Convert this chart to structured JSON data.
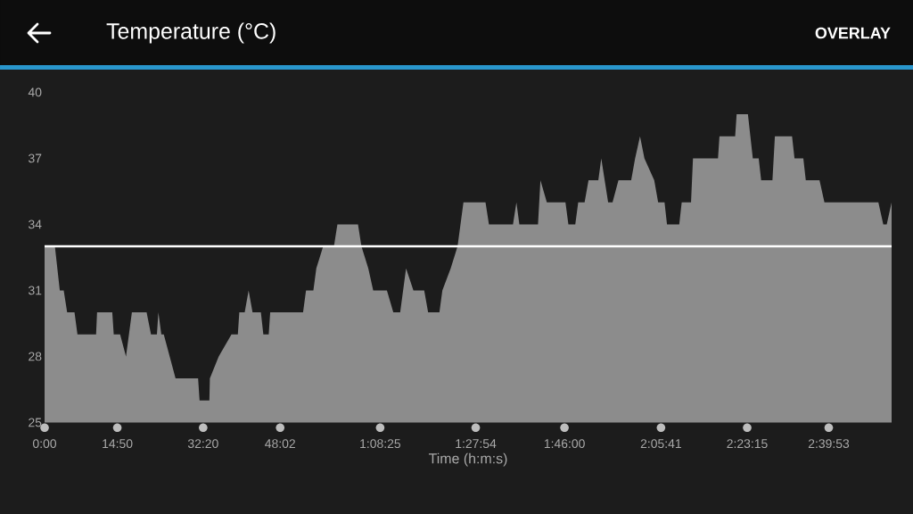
{
  "chart_data": {
    "type": "area",
    "title": "Temperature (°C)",
    "xlabel": "Time (h:m:s)",
    "annotations": [
      "OVERLAY"
    ],
    "color": "#8c8c8c",
    "x": [
      0,
      2.1,
      3.1,
      3.9,
      4.6,
      6.1,
      6.7,
      10.5,
      10.7,
      13.8,
      14.1,
      15.4,
      16.6,
      17.8,
      20.8,
      21.7,
      22.9,
      23.2,
      23.8,
      24.3,
      25.5,
      26.7,
      31.3,
      31.6,
      33.6,
      33.7,
      35.5,
      38.1,
      39.4,
      39.7,
      40.8,
      41.6,
      42.4,
      44.1,
      44.6,
      45.7,
      46.0,
      52.7,
      53.3,
      54.8,
      55.4,
      56.8,
      59.0,
      59.7,
      63.9,
      64.6,
      66.0,
      67.0,
      69.8,
      71.1,
      72.5,
      73.7,
      75.2,
      77.4,
      78.2,
      80.5,
      81.1,
      82.8,
      84.2,
      85.4,
      89.9,
      90.6,
      95.5,
      96.2,
      96.8,
      100.6,
      101.1,
      102.4,
      103.1,
      106.2,
      106.8,
      108.2,
      108.8,
      110.1,
      110.9,
      112.9,
      113.5,
      114.9,
      115.8,
      117.0,
      119.6,
      120.4,
      121.4,
      122.3,
      124.3,
      125.1,
      126.4,
      126.9,
      129.4,
      129.9,
      131.8,
      132.2,
      137.3,
      137.6,
      140.8,
      141.1,
      143.4,
      144.4,
      145.6,
      146.1,
      148.4,
      148.9,
      152.4,
      152.9,
      154.7,
      155.2,
      158.0,
      159.0,
      170.0,
      171.0,
      171.7,
      172.7
    ],
    "values": [
      33,
      33,
      31,
      31,
      30,
      30,
      29,
      29,
      30,
      30,
      29,
      29,
      28,
      30,
      30,
      29,
      29,
      30,
      29,
      29,
      28,
      27,
      27,
      26,
      26,
      27,
      28,
      29,
      29,
      30,
      30,
      31,
      30,
      30,
      29,
      29,
      30,
      30,
      31,
      31,
      32,
      33,
      33,
      34,
      34,
      33,
      32,
      31,
      31,
      30,
      30,
      32,
      31,
      31,
      30,
      30,
      31,
      32,
      33,
      35,
      35,
      34,
      34,
      35,
      34,
      34,
      36,
      35,
      35,
      35,
      34,
      34,
      35,
      35,
      36,
      36,
      37,
      35,
      35,
      36,
      36,
      37,
      38,
      37,
      36,
      35,
      35,
      34,
      34,
      35,
      35,
      37,
      37,
      38,
      38,
      39,
      39,
      37,
      37,
      36,
      36,
      38,
      38,
      37,
      37,
      36,
      36,
      35,
      35,
      34,
      34,
      35
    ],
    "xlim": [
      0,
      172.7
    ],
    "ylim": [
      25,
      40
    ],
    "xticks": [
      {
        "value": 0,
        "label": "0:00"
      },
      {
        "value": 14.83,
        "label": "14:50"
      },
      {
        "value": 32.33,
        "label": "32:20"
      },
      {
        "value": 48.03,
        "label": "48:02"
      },
      {
        "value": 68.42,
        "label": "1:08:25"
      },
      {
        "value": 87.9,
        "label": "1:27:54"
      },
      {
        "value": 106,
        "label": "1:46:00"
      },
      {
        "value": 125.68,
        "label": "2:05:41"
      },
      {
        "value": 143.25,
        "label": "2:23:15"
      },
      {
        "value": 159.88,
        "label": "2:39:53"
      }
    ],
    "yticks": [
      25,
      28,
      31,
      34,
      37,
      40
    ],
    "ref_lines": [
      {
        "axis": "y",
        "value": 33,
        "color": "#ffffff"
      }
    ]
  }
}
